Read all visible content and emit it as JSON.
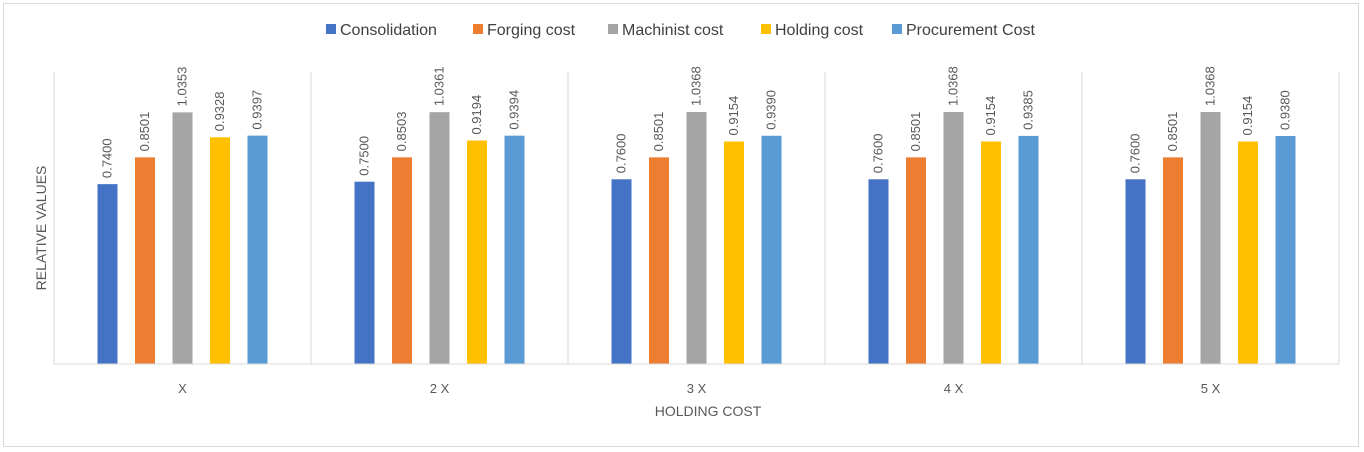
{
  "chart_data": {
    "type": "bar",
    "categories": [
      "X",
      "2 X",
      "3 X",
      "4 X",
      "5 X"
    ],
    "series": [
      {
        "name": "Consolidation",
        "color": "#4472c4",
        "values": [
          0.74,
          0.75,
          0.76,
          0.76,
          0.76
        ],
        "labels": [
          "0.7400",
          "0.7500",
          "0.7600",
          "0.7600",
          "0.7600"
        ]
      },
      {
        "name": "Forging cost",
        "color": "#ed7d31",
        "values": [
          0.8501,
          0.8503,
          0.8501,
          0.8501,
          0.8501
        ],
        "labels": [
          "0.8501",
          "0.8503",
          "0.8501",
          "0.8501",
          "0.8501"
        ]
      },
      {
        "name": "Machinist cost",
        "color": "#a5a5a5",
        "values": [
          1.0353,
          1.0361,
          1.0368,
          1.0368,
          1.0368
        ],
        "labels": [
          "1.0353",
          "1.0361",
          "1.0368",
          "1.0368",
          "1.0368"
        ]
      },
      {
        "name": "Holding cost",
        "color": "#ffc000",
        "values": [
          0.9328,
          0.9194,
          0.9154,
          0.9154,
          0.9154
        ],
        "labels": [
          "0.9328",
          "0.9194",
          "0.9154",
          "0.9154",
          "0.9154"
        ]
      },
      {
        "name": "Procurement Cost",
        "color": "#5b9bd5",
        "values": [
          0.9397,
          0.9394,
          0.939,
          0.9385,
          0.938
        ],
        "labels": [
          "0.9397",
          "0.9394",
          "0.9390",
          "0.9385",
          "0.9380"
        ]
      }
    ],
    "title": "",
    "xlabel": "HOLDING COST",
    "ylabel": "RELATIVE VALUES",
    "ylim": [
      0,
      1.0368
    ],
    "grid": false,
    "category_separators": true,
    "legend_position": "top"
  }
}
